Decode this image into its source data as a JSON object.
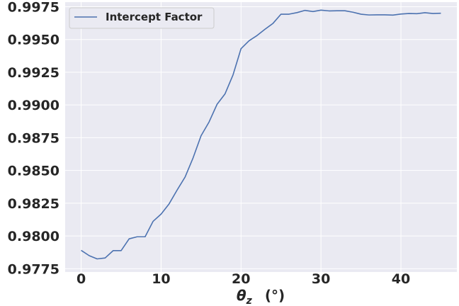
{
  "chart_data": {
    "type": "line",
    "title": "",
    "xlabel_symbol": "θ",
    "xlabel_subscript": "z",
    "xlabel_unit": "(°)",
    "ylabel": "",
    "xlim": [
      -2,
      47
    ],
    "ylim": [
      0.97725,
      0.99785
    ],
    "xticks": [
      0,
      10,
      20,
      30,
      40
    ],
    "yticks": [
      0.9775,
      0.98,
      0.9825,
      0.985,
      0.9875,
      0.99,
      0.9925,
      0.995,
      0.9975
    ],
    "grid": true,
    "legend_position": "top-left",
    "background_color": "#eaeaf2",
    "grid_color": "#ffffff",
    "line_color": "#4c72b0",
    "series": [
      {
        "name": "Intercept Factor",
        "x": [
          0,
          1,
          2,
          3,
          4,
          5,
          6,
          7,
          8,
          9,
          10,
          11,
          12,
          13,
          14,
          15,
          16,
          17,
          18,
          19,
          20,
          21,
          22,
          23,
          24,
          25,
          26,
          27,
          28,
          29,
          30,
          31,
          32,
          33,
          34,
          35,
          36,
          37,
          38,
          39,
          40,
          41,
          42,
          43,
          44,
          45
        ],
        "values": [
          0.9789,
          0.9785,
          0.97825,
          0.97832,
          0.97888,
          0.97888,
          0.97978,
          0.97994,
          0.97994,
          0.98112,
          0.98167,
          0.98245,
          0.9835,
          0.9845,
          0.98596,
          0.98765,
          0.9887,
          0.99005,
          0.99085,
          0.9923,
          0.9943,
          0.9949,
          0.9953,
          0.99578,
          0.99623,
          0.99693,
          0.99693,
          0.99705,
          0.99722,
          0.99713,
          0.99724,
          0.99718,
          0.99719,
          0.99719,
          0.99708,
          0.99693,
          0.99687,
          0.99688,
          0.99688,
          0.99686,
          0.99694,
          0.99698,
          0.99697,
          0.99704,
          0.99698,
          0.997
        ]
      }
    ]
  }
}
